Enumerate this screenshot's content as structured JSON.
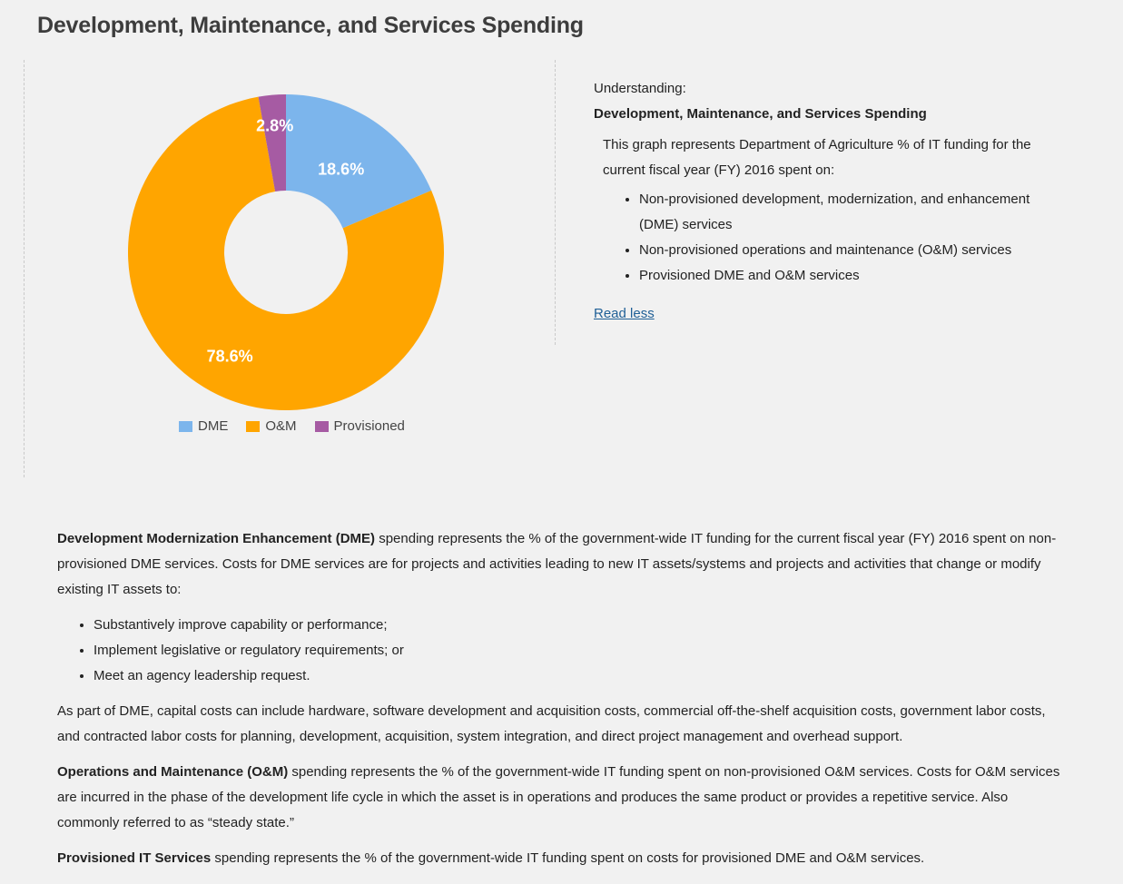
{
  "page": {
    "title": "Development, Maintenance, and Services Spending"
  },
  "chart_data": {
    "type": "pie",
    "donut": true,
    "title": "",
    "categories": [
      "DME",
      "O&M",
      "Provisioned"
    ],
    "values": [
      18.6,
      78.6,
      2.8
    ],
    "labels": [
      "18.6%",
      "78.6%",
      "2.8%"
    ],
    "colors": [
      "#7cb5ec",
      "#ffa500",
      "#a65ba3"
    ],
    "legend": "bottom-center"
  },
  "side": {
    "understanding": "Understanding:",
    "title": "Development, Maintenance, and Services Spending",
    "desc": "This graph represents Department of Agriculture % of IT funding for the current fiscal year (FY) 2016 spent on:",
    "items": [
      "Non-provisioned development, modernization, and enhancement (DME) services",
      "Non-provisioned operations and maintenance (O&M) services",
      "Provisioned DME and O&M services"
    ],
    "read_less": "Read less"
  },
  "body": {
    "dme_term": "Development Modernization Enhancement (DME)",
    "dme_text": " spending represents the % of the government-wide IT funding for the current fiscal year (FY) 2016 spent on non-provisioned DME services. Costs for DME services are for projects and activities leading to new IT assets/systems and projects and activities that change or modify existing IT assets to:",
    "dme_items": [
      "Substantively improve capability or performance;",
      "Implement legislative or regulatory requirements; or",
      "Meet an agency leadership request."
    ],
    "capital_text": "As part of DME, capital costs can include hardware, software development and acquisition costs, commercial off-the-shelf acquisition costs, government labor costs, and contracted labor costs for planning, development, acquisition, system integration, and direct project management and overhead support.",
    "om_term": "Operations and Maintenance (O&M)",
    "om_text": " spending represents the % of the government-wide IT funding spent on non-provisioned O&M services. Costs for O&M services are incurred in the phase of the development life cycle in which the asset is in operations and produces the same product or provides a repetitive service. Also commonly referred to as “steady state.”",
    "prov_term": "Provisioned IT Services",
    "prov_text": " spending represents the % of the government-wide IT funding spent on costs for provisioned DME and O&M services."
  }
}
